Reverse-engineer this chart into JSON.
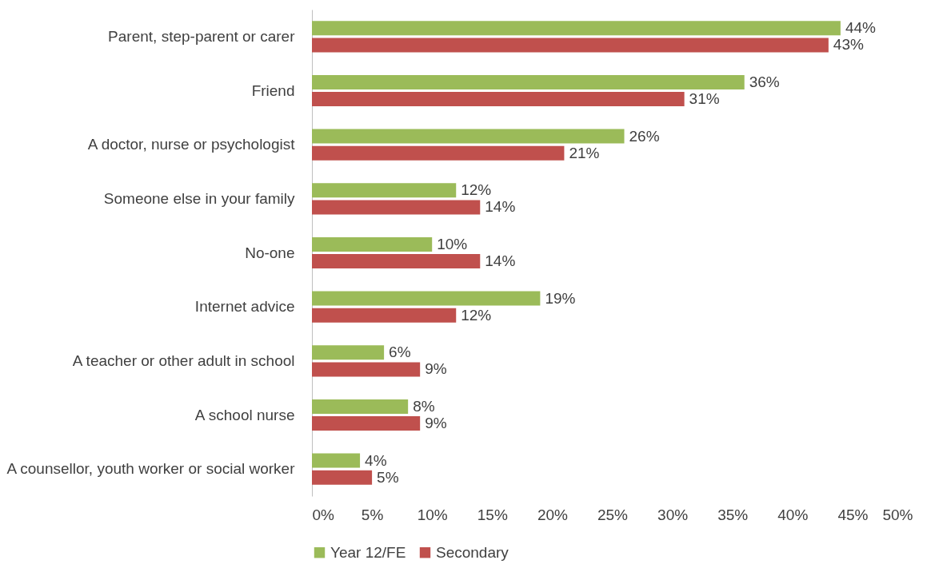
{
  "chart_data": {
    "type": "bar",
    "orientation": "horizontal",
    "categories": [
      "Parent, step-parent or carer",
      "Friend",
      "A doctor, nurse or psychologist",
      "Someone else in your family",
      "No-one",
      "Internet advice",
      "A teacher or other adult in school",
      "A school nurse",
      "A counsellor, youth worker or social worker"
    ],
    "series": [
      {
        "name": "Year 12/FE",
        "color": "#9bbb59",
        "values": [
          44,
          36,
          26,
          12,
          10,
          19,
          6,
          8,
          4
        ],
        "value_labels": [
          "44%",
          "36%",
          "26%",
          "12%",
          "10%",
          "19%",
          "6%",
          "8%",
          "4%"
        ]
      },
      {
        "name": "Secondary",
        "color": "#c0504d",
        "values": [
          43,
          31,
          21,
          14,
          14,
          12,
          9,
          9,
          5
        ],
        "value_labels": [
          "43%",
          "31%",
          "21%",
          "14%",
          "14%",
          "12%",
          "9%",
          "9%",
          "5%"
        ]
      }
    ],
    "xlim": [
      0,
      50
    ],
    "xticks": [
      {
        "value": 0,
        "label": "0%"
      },
      {
        "value": 5,
        "label": "5%"
      },
      {
        "value": 10,
        "label": "10%"
      },
      {
        "value": 15,
        "label": "15%"
      },
      {
        "value": 20,
        "label": "20%"
      },
      {
        "value": 25,
        "label": "25%"
      },
      {
        "value": 30,
        "label": "30%"
      },
      {
        "value": 35,
        "label": "35%"
      },
      {
        "value": 40,
        "label": "40%"
      },
      {
        "value": 45,
        "label": "45%"
      },
      {
        "value": 50,
        "label": "50%"
      }
    ],
    "grid": false,
    "legend": "bottom"
  }
}
